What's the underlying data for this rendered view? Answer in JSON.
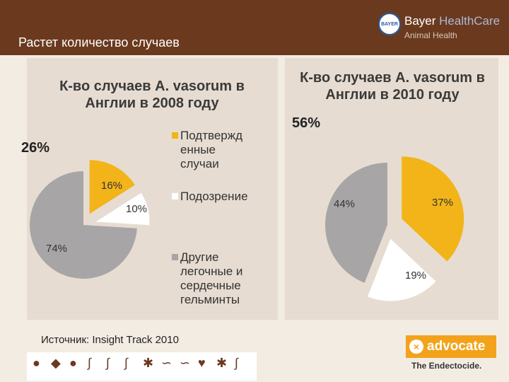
{
  "header": {
    "title": "Растет количество случаев",
    "logo_text": "BAYER",
    "brand_name": "Bayer ",
    "brand_name_accent": "HealthCare",
    "brand_sub": "Animal Health"
  },
  "colors": {
    "header": "#6b3a1e",
    "confirmed": "#f2b418",
    "suspected": "#ffffff",
    "other": "#a7a5a5"
  },
  "chart_data": [
    {
      "type": "pie",
      "title": "К-во случаев A. vasorum в Англии в 2008 году",
      "title_lines": [
        "К-во случаев A. vasorum в",
        "Англии в 2008 году"
      ],
      "annotation": "26%",
      "slices": [
        {
          "label": "Подтвержд енные случаи",
          "value": 16,
          "display": "16%"
        },
        {
          "label": "Подозрение",
          "value": 10,
          "display": "10%"
        },
        {
          "label": "Другие легочные и сердечные гельминты",
          "value": 74,
          "display": "74%"
        }
      ],
      "legend": [
        [
          "Подтвержд",
          "енные",
          "случаи"
        ],
        [
          "Подозрение"
        ],
        [
          "Другие",
          "легочные и",
          "сердечные",
          "гельминты"
        ]
      ]
    },
    {
      "type": "pie",
      "title": "К-во случаев A. vasorum в Англии в 2010 году",
      "title_lines": [
        "К-во случаев A. vasorum в",
        "Англии в 2010 году"
      ],
      "annotation": "56%",
      "slices": [
        {
          "label": "Подтвержд енные случаи",
          "value": 37,
          "display": "37%"
        },
        {
          "label": "Подозрение",
          "value": 19,
          "display": "19%"
        },
        {
          "label": "Другие легочные и сердечные гельминты",
          "value": 44,
          "display": "44%"
        }
      ]
    }
  ],
  "footer": {
    "source": "Источник: Insight Track 2010",
    "advocate": "advocate",
    "advocate_mark": "×",
    "tagline": "The Endectocide."
  },
  "parasite_icons": [
    "flea",
    "louse",
    "tick",
    "worm",
    "lungworm",
    "heartworm",
    "mite",
    "mite",
    "worm",
    "worm",
    "worm",
    "mite"
  ]
}
